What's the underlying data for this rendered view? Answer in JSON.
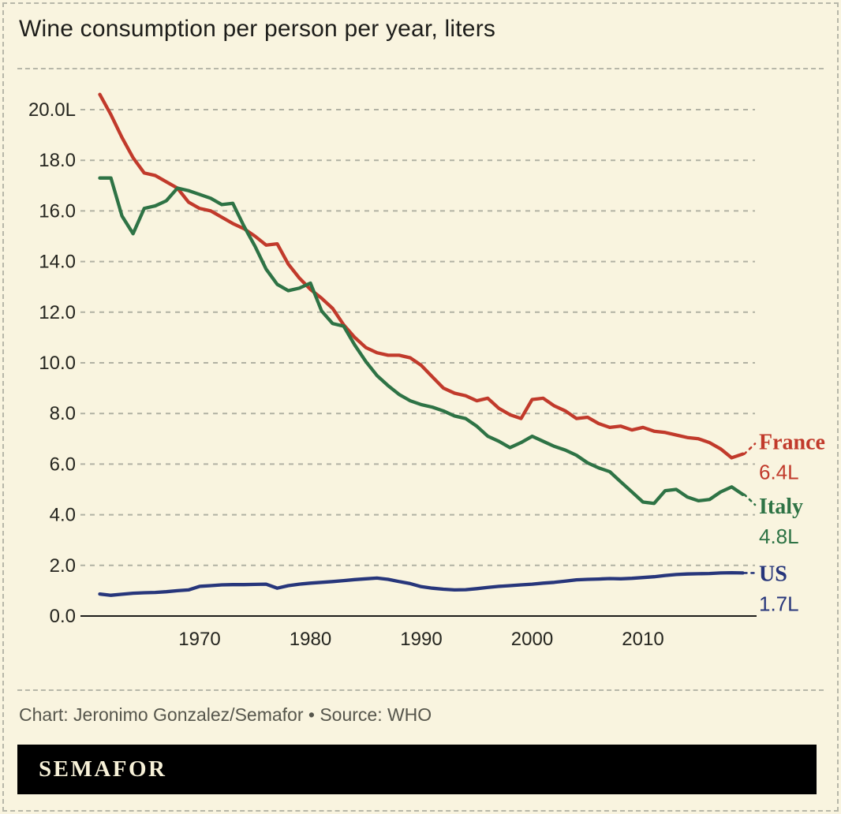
{
  "title": "Wine consumption per person per year, liters",
  "footer": {
    "credit": "Chart: Jeronimo Gonzalez/Semafor • Source: WHO"
  },
  "logo": {
    "text": "SEMAFOR"
  },
  "colors": {
    "background": "#f9f4df",
    "border_dash": "#b7b7a9",
    "grid": "#b1b1a3",
    "axis": "#1d1d1a",
    "title_text": "#1d1d1a",
    "tick_text": "#25251f",
    "footer_text": "#56564c",
    "logo_bg": "#000000",
    "logo_text": "#f7f1d8",
    "france": "#c13a2b",
    "italy": "#2e7345",
    "us": "#27367b"
  },
  "chart_data": {
    "type": "line",
    "title": "Wine consumption per person per year, liters",
    "unit": "liters of wine per person per year",
    "grid": "horizontal dashed gridlines, no vertical grid",
    "legend_position": "right end-of-line labels",
    "xlim": [
      1961,
      2019
    ],
    "ylim": [
      0,
      21
    ],
    "x_ticks": [
      "1970",
      "1980",
      "1990",
      "2000",
      "2010"
    ],
    "x_tick_years": [
      1970,
      1980,
      1990,
      2000,
      2010
    ],
    "y_ticks": [
      0,
      2,
      4,
      6,
      8,
      10,
      12,
      14,
      16,
      18,
      20
    ],
    "y_tick_labels": [
      "0.0",
      "2.0",
      "4.0",
      "6.0",
      "8.0",
      "10.0",
      "12.0",
      "14.0",
      "16.0",
      "18.0",
      "20.0L"
    ],
    "x": [
      1961,
      1962,
      1963,
      1964,
      1965,
      1966,
      1967,
      1968,
      1969,
      1970,
      1971,
      1972,
      1973,
      1974,
      1975,
      1976,
      1977,
      1978,
      1979,
      1980,
      1981,
      1982,
      1983,
      1984,
      1985,
      1986,
      1987,
      1988,
      1989,
      1990,
      1991,
      1992,
      1993,
      1994,
      1995,
      1996,
      1997,
      1998,
      1999,
      2000,
      2001,
      2002,
      2003,
      2004,
      2005,
      2006,
      2007,
      2008,
      2009,
      2010,
      2011,
      2012,
      2013,
      2014,
      2015,
      2016,
      2017,
      2018,
      2019
    ],
    "series": [
      {
        "name": "France",
        "color": "#c13a2b",
        "end_label": "6.4L",
        "values": [
          20.6,
          19.8,
          18.9,
          18.1,
          17.5,
          17.4,
          17.15,
          16.9,
          16.35,
          16.1,
          16.0,
          15.75,
          15.5,
          15.3,
          15.0,
          14.65,
          14.7,
          13.9,
          13.35,
          12.9,
          12.55,
          12.15,
          11.5,
          11.0,
          10.6,
          10.4,
          10.3,
          10.3,
          10.2,
          9.9,
          9.45,
          9.0,
          8.8,
          8.7,
          8.5,
          8.6,
          8.2,
          7.95,
          7.8,
          8.55,
          8.6,
          8.3,
          8.1,
          7.8,
          7.85,
          7.6,
          7.45,
          7.5,
          7.35,
          7.45,
          7.3,
          7.25,
          7.15,
          7.05,
          7.0,
          6.85,
          6.6,
          6.25,
          6.4
        ]
      },
      {
        "name": "Italy",
        "color": "#2e7345",
        "end_label": "4.8L",
        "values": [
          17.3,
          17.3,
          15.8,
          15.1,
          16.1,
          16.2,
          16.4,
          16.9,
          16.8,
          16.65,
          16.5,
          16.25,
          16.3,
          15.4,
          14.6,
          13.7,
          13.1,
          12.85,
          12.95,
          13.15,
          12.05,
          11.55,
          11.45,
          10.7,
          10.05,
          9.5,
          9.1,
          8.75,
          8.5,
          8.35,
          8.25,
          8.1,
          7.9,
          7.8,
          7.5,
          7.1,
          6.9,
          6.65,
          6.85,
          7.1,
          6.9,
          6.7,
          6.55,
          6.35,
          6.05,
          5.85,
          5.7,
          5.3,
          4.9,
          4.5,
          4.45,
          4.95,
          5.0,
          4.7,
          4.55,
          4.6,
          4.9,
          5.1,
          4.8
        ]
      },
      {
        "name": "US",
        "color": "#27367b",
        "end_label": "1.7L",
        "values": [
          0.87,
          0.82,
          0.86,
          0.9,
          0.92,
          0.93,
          0.96,
          1.0,
          1.03,
          1.17,
          1.2,
          1.23,
          1.24,
          1.24,
          1.25,
          1.26,
          1.1,
          1.2,
          1.26,
          1.3,
          1.33,
          1.36,
          1.4,
          1.44,
          1.47,
          1.5,
          1.45,
          1.36,
          1.28,
          1.16,
          1.1,
          1.06,
          1.03,
          1.04,
          1.08,
          1.13,
          1.17,
          1.2,
          1.23,
          1.26,
          1.3,
          1.33,
          1.38,
          1.43,
          1.45,
          1.46,
          1.48,
          1.47,
          1.49,
          1.52,
          1.55,
          1.6,
          1.64,
          1.66,
          1.67,
          1.68,
          1.7,
          1.71,
          1.7
        ]
      }
    ]
  }
}
